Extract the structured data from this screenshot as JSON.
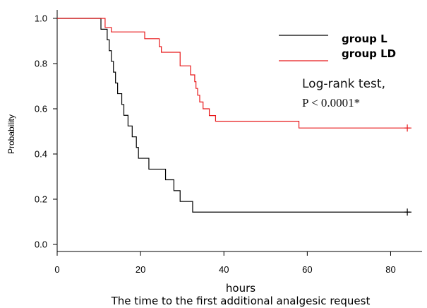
{
  "chart_data": {
    "type": "line",
    "step": true,
    "title": "",
    "xlabel": "hours",
    "ylabel": "Probability",
    "caption": "The time to the first additional analgesic request",
    "xlim": [
      0,
      85
    ],
    "ylim": [
      0.0,
      1.0
    ],
    "x_ticks": [
      "0",
      "20",
      "40",
      "60",
      "80"
    ],
    "y_ticks": [
      "0.0",
      "0.2",
      "0.4",
      "0.6",
      "0.8",
      "1.0"
    ],
    "legend_position": "top-right",
    "annotations": [
      "Log-rank test,",
      "P < 0.0001*"
    ],
    "series": [
      {
        "name": "group L",
        "color": "#000000",
        "x": [
          0,
          10.5,
          12.0,
          12.5,
          13.0,
          13.5,
          14.0,
          14.5,
          15.5,
          16.0,
          17.0,
          18.0,
          19.0,
          19.5,
          22.0,
          26.0,
          28.0,
          29.5,
          32.5,
          85
        ],
        "y": [
          1.0,
          0.952,
          0.905,
          0.857,
          0.81,
          0.762,
          0.714,
          0.667,
          0.619,
          0.571,
          0.524,
          0.476,
          0.429,
          0.381,
          0.333,
          0.286,
          0.238,
          0.19,
          0.143,
          0.143
        ],
        "censored_x": [
          84
        ]
      },
      {
        "name": "group LD",
        "color": "#e8191b",
        "x": [
          0,
          11.5,
          13.0,
          21.0,
          24.5,
          25.0,
          29.5,
          32.0,
          33.0,
          33.3,
          33.7,
          34.2,
          35.0,
          36.5,
          38.0,
          58.0,
          85
        ],
        "y": [
          1.0,
          0.96,
          0.94,
          0.91,
          0.875,
          0.85,
          0.79,
          0.75,
          0.72,
          0.69,
          0.66,
          0.63,
          0.6,
          0.57,
          0.545,
          0.515,
          0.515
        ],
        "censored_x": [
          84
        ]
      }
    ]
  }
}
